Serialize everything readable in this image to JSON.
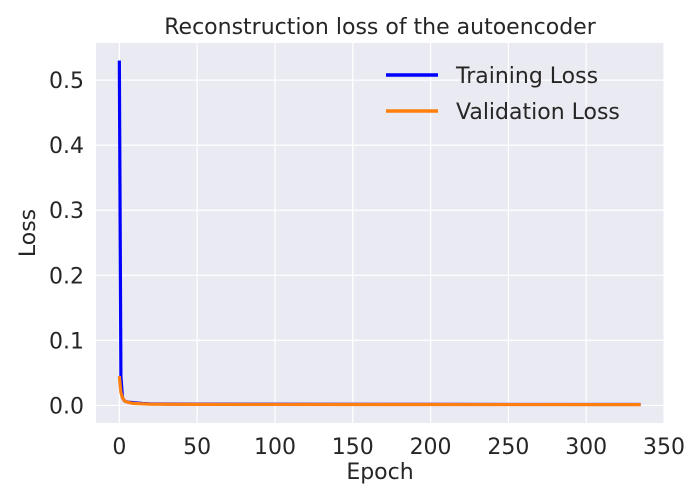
{
  "chart_data": {
    "type": "line",
    "title": "Reconstruction loss of the autoencoder",
    "xlabel": "Epoch",
    "ylabel": "Loss",
    "xlim": [
      -15,
      350
    ],
    "ylim": [
      -0.027,
      0.557
    ],
    "xticks": [
      0,
      50,
      100,
      150,
      200,
      250,
      300,
      350
    ],
    "yticks": [
      0.0,
      0.1,
      0.2,
      0.3,
      0.4,
      0.5
    ],
    "xtick_labels": [
      "0",
      "50",
      "100",
      "150",
      "200",
      "250",
      "300",
      "350"
    ],
    "ytick_labels": [
      "0.0",
      "0.1",
      "0.2",
      "0.3",
      "0.4",
      "0.5"
    ],
    "grid": true,
    "background": "#EAEAF2",
    "legend": {
      "placement": "top-right"
    },
    "series": [
      {
        "name": "Training Loss",
        "color": "#0000FF",
        "x": [
          0,
          1,
          2,
          3,
          4,
          6,
          8,
          10,
          15,
          20,
          30,
          50,
          100,
          200,
          335
        ],
        "y": [
          0.53,
          0.045,
          0.012,
          0.008,
          0.006,
          0.005,
          0.0045,
          0.004,
          0.003,
          0.0025,
          0.0022,
          0.002,
          0.0018,
          0.0016,
          0.0015
        ]
      },
      {
        "name": "Validation Loss",
        "color": "#FF7F0E",
        "x": [
          0,
          1,
          2,
          3,
          4,
          6,
          8,
          10,
          15,
          20,
          30,
          50,
          100,
          200,
          335
        ],
        "y": [
          0.045,
          0.02,
          0.012,
          0.008,
          0.006,
          0.0045,
          0.0035,
          0.003,
          0.0025,
          0.002,
          0.0018,
          0.0016,
          0.0015,
          0.0014,
          0.0013
        ]
      }
    ]
  }
}
